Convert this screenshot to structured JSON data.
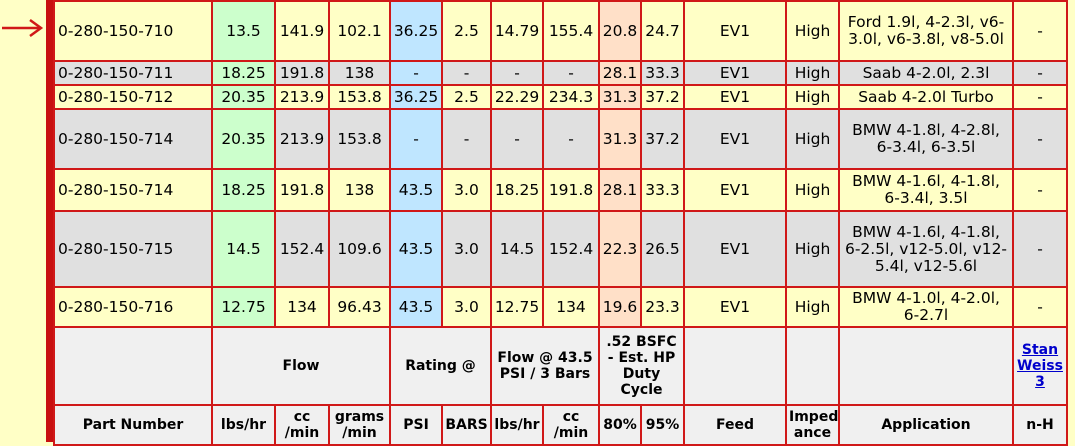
{
  "rows": [
    {
      "part": "0-280-150-710",
      "lbs": "13.5",
      "cc": "141.9",
      "grams": "102.1",
      "psi": "36.25",
      "bars": "2.5",
      "f_lbs": "14.79",
      "f_cc": "155.4",
      "p80": "20.8",
      "p95": "24.7",
      "feed": "EV1",
      "imp": "High",
      "app": "Ford 1.9l, 4-2.3l, v6-3.0l, v6-3.8l, v8-5.0l",
      "nh": "-"
    },
    {
      "part": "0-280-150-711",
      "lbs": "18.25",
      "cc": "191.8",
      "grams": "138",
      "psi": "-",
      "bars": "-",
      "f_lbs": "-",
      "f_cc": "-",
      "p80": "28.1",
      "p95": "33.3",
      "feed": "EV1",
      "imp": "High",
      "app": "Saab 4-2.0l, 2.3l",
      "nh": "-"
    },
    {
      "part": "0-280-150-712",
      "lbs": "20.35",
      "cc": "213.9",
      "grams": "153.8",
      "psi": "36.25",
      "bars": "2.5",
      "f_lbs": "22.29",
      "f_cc": "234.3",
      "p80": "31.3",
      "p95": "37.2",
      "feed": "EV1",
      "imp": "High",
      "app": "Saab 4-2.0l Turbo",
      "nh": "-"
    },
    {
      "part": "0-280-150-714",
      "lbs": "20.35",
      "cc": "213.9",
      "grams": "153.8",
      "psi": "-",
      "bars": "-",
      "f_lbs": "-",
      "f_cc": "-",
      "p80": "31.3",
      "p95": "37.2",
      "feed": "EV1",
      "imp": "High",
      "app": "BMW 4-1.8l, 4-2.8l, 6-3.4l, 6-3.5l",
      "nh": "-"
    },
    {
      "part": "0-280-150-714",
      "lbs": "18.25",
      "cc": "191.8",
      "grams": "138",
      "psi": "43.5",
      "bars": "3.0",
      "f_lbs": "18.25",
      "f_cc": "191.8",
      "p80": "28.1",
      "p95": "33.3",
      "feed": "EV1",
      "imp": "High",
      "app": "BMW 4-1.6l, 4-1.8l, 6-3.4l, 3.5l",
      "nh": "-"
    },
    {
      "part": "0-280-150-715",
      "lbs": "14.5",
      "cc": "152.4",
      "grams": "109.6",
      "psi": "43.5",
      "bars": "3.0",
      "f_lbs": "14.5",
      "f_cc": "152.4",
      "p80": "22.3",
      "p95": "26.5",
      "feed": "EV1",
      "imp": "High",
      "app": "BMW 4-1.6l, 4-1.8l, 6-2.5l, v12-5.0l, v12-5.4l, v12-5.6l",
      "nh": "-"
    },
    {
      "part": "0-280-150-716",
      "lbs": "12.75",
      "cc": "134",
      "grams": "96.43",
      "psi": "43.5",
      "bars": "3.0",
      "f_lbs": "12.75",
      "f_cc": "134",
      "p80": "19.6",
      "p95": "23.3",
      "feed": "EV1",
      "imp": "High",
      "app": "BMW 4-1.0l, 4-2.0l, 6-2.7l",
      "nh": "-"
    }
  ],
  "header_group": {
    "flow": "Flow",
    "rating": "Rating @",
    "flow_at": "Flow @ 43.5 PSI / 3 Bars",
    "bsfc": ".52 BSFC - Est. HP Duty Cycle",
    "credit": "Stan Weiss 3"
  },
  "header_cols": {
    "part": "Part Number",
    "lbs": "lbs/hr",
    "cc": "cc /min",
    "grams": "grams /min",
    "psi": "PSI",
    "bars": "BARS",
    "f_lbs": "lbs/hr",
    "f_cc": "cc /min",
    "p80": "80%",
    "p95": "95%",
    "feed": "Feed",
    "imp": "Imped ance",
    "app": "Application",
    "nh": "n-H"
  },
  "colors": {
    "border": "#d01818",
    "yellow": "#ffffc6",
    "gray": "#e0e0e0",
    "green": "#ccffcc",
    "blue": "#bfe6ff",
    "peach": "#ffe0c8"
  }
}
